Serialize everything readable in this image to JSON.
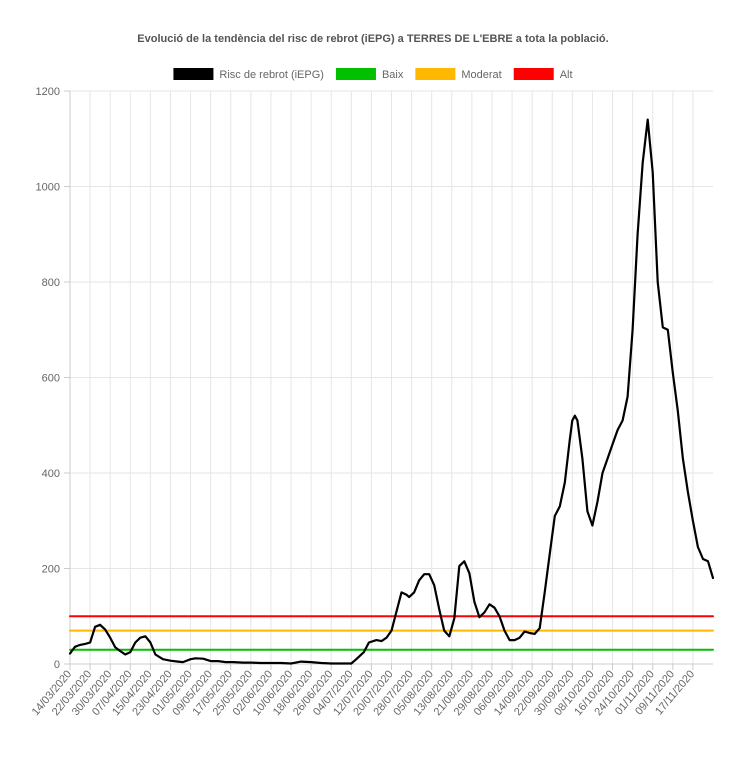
{
  "chart_data": {
    "type": "line",
    "title": "Evolució de la tendència del risc de rebrot (iEPG) a TERRES DE L'EBRE a tota la població.",
    "xlabel": "",
    "ylabel": "",
    "ylim": [
      0,
      1200
    ],
    "y_ticks": [
      "0",
      "200",
      "400",
      "600",
      "800",
      "1000",
      "1200"
    ],
    "x_tick_labels": [
      "14/03/2020",
      "22/03/2020",
      "30/03/2020",
      "07/04/2020",
      "15/04/2020",
      "23/04/2020",
      "01/05/2020",
      "09/05/2020",
      "17/05/2020",
      "25/05/2020",
      "02/06/2020",
      "10/06/2020",
      "18/06/2020",
      "26/06/2020",
      "04/07/2020",
      "12/07/2020",
      "20/07/2020",
      "28/07/2020",
      "05/08/2020",
      "13/08/2020",
      "21/08/2020",
      "29/08/2020",
      "06/09/2020",
      "14/09/2020",
      "22/09/2020",
      "30/09/2020",
      "08/10/2020",
      "16/10/2020",
      "24/10/2020",
      "01/11/2020",
      "09/11/2020",
      "17/11/2020"
    ],
    "x_range": [
      "14/03/2020",
      "25/11/2020"
    ],
    "grid": true,
    "legend_position": "top",
    "series": [
      {
        "name": "Risc de rebrot (iEPG)",
        "color": "#000000",
        "points": [
          [
            "14/03/2020",
            22
          ],
          [
            "16/03/2020",
            36
          ],
          [
            "18/03/2020",
            40
          ],
          [
            "20/03/2020",
            42
          ],
          [
            "22/03/2020",
            45
          ],
          [
            "24/03/2020",
            78
          ],
          [
            "26/03/2020",
            82
          ],
          [
            "28/03/2020",
            72
          ],
          [
            "30/03/2020",
            55
          ],
          [
            "01/04/2020",
            35
          ],
          [
            "03/04/2020",
            27
          ],
          [
            "05/04/2020",
            20
          ],
          [
            "07/04/2020",
            25
          ],
          [
            "09/04/2020",
            45
          ],
          [
            "11/04/2020",
            55
          ],
          [
            "13/04/2020",
            58
          ],
          [
            "15/04/2020",
            45
          ],
          [
            "17/04/2020",
            20
          ],
          [
            "20/04/2020",
            10
          ],
          [
            "23/04/2020",
            7
          ],
          [
            "26/04/2020",
            5
          ],
          [
            "28/04/2020",
            4
          ],
          [
            "01/05/2020",
            10
          ],
          [
            "03/05/2020",
            12
          ],
          [
            "06/05/2020",
            11
          ],
          [
            "09/05/2020",
            6
          ],
          [
            "12/05/2020",
            6
          ],
          [
            "15/05/2020",
            4
          ],
          [
            "18/05/2020",
            4
          ],
          [
            "22/05/2020",
            3
          ],
          [
            "25/05/2020",
            3
          ],
          [
            "29/05/2020",
            2
          ],
          [
            "02/06/2020",
            2
          ],
          [
            "06/06/2020",
            2
          ],
          [
            "10/06/2020",
            1
          ],
          [
            "14/06/2020",
            5
          ],
          [
            "18/06/2020",
            4
          ],
          [
            "22/06/2020",
            2
          ],
          [
            "26/06/2020",
            1
          ],
          [
            "30/06/2020",
            1
          ],
          [
            "04/07/2020",
            1
          ],
          [
            "06/07/2020",
            10
          ],
          [
            "09/07/2020",
            25
          ],
          [
            "11/07/2020",
            45
          ],
          [
            "14/07/2020",
            50
          ],
          [
            "16/07/2020",
            48
          ],
          [
            "18/07/2020",
            55
          ],
          [
            "20/07/2020",
            70
          ],
          [
            "22/07/2020",
            110
          ],
          [
            "24/07/2020",
            150
          ],
          [
            "26/07/2020",
            145
          ],
          [
            "27/07/2020",
            140
          ],
          [
            "29/07/2020",
            150
          ],
          [
            "31/07/2020",
            175
          ],
          [
            "02/08/2020",
            188
          ],
          [
            "04/08/2020",
            188
          ],
          [
            "06/08/2020",
            165
          ],
          [
            "08/08/2020",
            115
          ],
          [
            "10/08/2020",
            70
          ],
          [
            "12/08/2020",
            58
          ],
          [
            "14/08/2020",
            95
          ],
          [
            "16/08/2020",
            205
          ],
          [
            "18/08/2020",
            215
          ],
          [
            "20/08/2020",
            190
          ],
          [
            "22/08/2020",
            130
          ],
          [
            "24/08/2020",
            98
          ],
          [
            "26/08/2020",
            108
          ],
          [
            "28/08/2020",
            125
          ],
          [
            "30/08/2020",
            118
          ],
          [
            "01/09/2020",
            100
          ],
          [
            "03/09/2020",
            70
          ],
          [
            "05/09/2020",
            50
          ],
          [
            "07/09/2020",
            50
          ],
          [
            "09/09/2020",
            55
          ],
          [
            "11/09/2020",
            68
          ],
          [
            "13/09/2020",
            65
          ],
          [
            "15/09/2020",
            63
          ],
          [
            "17/09/2020",
            75
          ],
          [
            "19/09/2020",
            150
          ],
          [
            "21/09/2020",
            230
          ],
          [
            "23/09/2020",
            310
          ],
          [
            "25/09/2020",
            330
          ],
          [
            "27/09/2020",
            380
          ],
          [
            "29/09/2020",
            470
          ],
          [
            "30/09/2020",
            510
          ],
          [
            "01/10/2020",
            520
          ],
          [
            "02/10/2020",
            510
          ],
          [
            "04/10/2020",
            430
          ],
          [
            "06/10/2020",
            320
          ],
          [
            "08/10/2020",
            290
          ],
          [
            "10/10/2020",
            340
          ],
          [
            "12/10/2020",
            400
          ],
          [
            "14/10/2020",
            430
          ],
          [
            "16/10/2020",
            460
          ],
          [
            "18/10/2020",
            490
          ],
          [
            "20/10/2020",
            510
          ],
          [
            "22/10/2020",
            560
          ],
          [
            "24/10/2020",
            700
          ],
          [
            "26/10/2020",
            900
          ],
          [
            "28/10/2020",
            1050
          ],
          [
            "30/10/2020",
            1140
          ],
          [
            "01/11/2020",
            1030
          ],
          [
            "03/11/2020",
            800
          ],
          [
            "05/11/2020",
            705
          ],
          [
            "07/11/2020",
            700
          ],
          [
            "09/11/2020",
            610
          ],
          [
            "11/11/2020",
            530
          ],
          [
            "13/11/2020",
            430
          ],
          [
            "15/11/2020",
            360
          ],
          [
            "17/11/2020",
            300
          ],
          [
            "19/11/2020",
            245
          ],
          [
            "21/11/2020",
            220
          ],
          [
            "23/11/2020",
            215
          ],
          [
            "25/11/2020",
            180
          ]
        ]
      },
      {
        "name": "Baix",
        "color": "#00c000",
        "points": [
          [
            "14/03/2020",
            30
          ],
          [
            "25/11/2020",
            30
          ]
        ]
      },
      {
        "name": "Moderat",
        "color": "#ffb800",
        "points": [
          [
            "14/03/2020",
            70
          ],
          [
            "25/11/2020",
            70
          ]
        ]
      },
      {
        "name": "Alt",
        "color": "#ff0000",
        "points": [
          [
            "14/03/2020",
            100
          ],
          [
            "25/11/2020",
            100
          ]
        ]
      }
    ]
  }
}
